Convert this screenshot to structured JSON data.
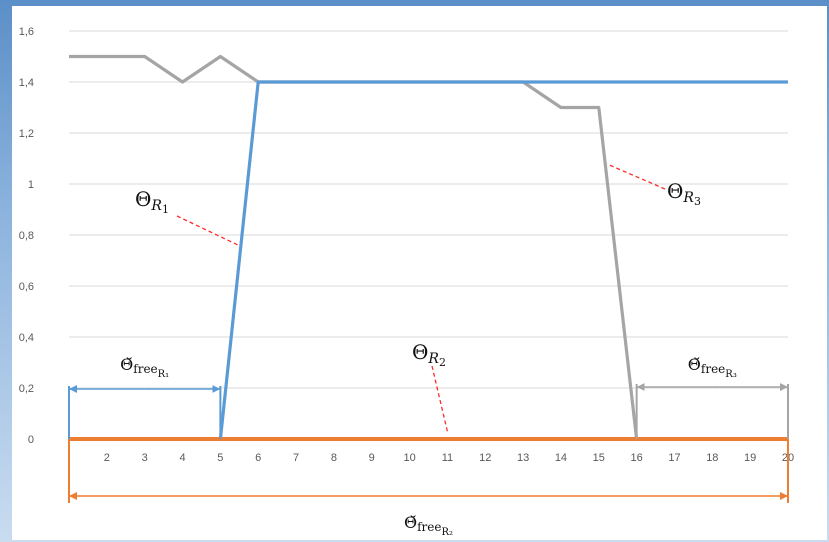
{
  "chart_data": {
    "type": "line",
    "x": [
      1,
      2,
      3,
      4,
      5,
      6,
      7,
      8,
      9,
      10,
      11,
      12,
      13,
      14,
      15,
      16,
      17,
      18,
      19,
      20
    ],
    "x_tick_labels": [
      "2",
      "3",
      "4",
      "5",
      "6",
      "7",
      "8",
      "9",
      "10",
      "11",
      "12",
      "13",
      "14",
      "15",
      "16",
      "17",
      "18",
      "19",
      "20"
    ],
    "y_tick_labels": [
      "0",
      "0,2",
      "0,4",
      "0,6",
      "0,8",
      "1",
      "1,2",
      "1,4",
      "1,6"
    ],
    "ylim": [
      0,
      1.6
    ],
    "xlim": [
      1,
      20
    ],
    "grid": "horizontal",
    "series": [
      {
        "color": "#5b9bd5",
        "points": [
          [
            1,
            0
          ],
          [
            5,
            0
          ],
          [
            6,
            1.4
          ],
          [
            20,
            1.4
          ]
        ]
      },
      {
        "color": "#ed7d31",
        "points": [
          [
            1,
            0
          ],
          [
            20,
            0
          ]
        ]
      },
      {
        "color": "#a5a5a5",
        "points": [
          [
            1,
            1.5
          ],
          [
            3,
            1.5
          ],
          [
            4,
            1.4
          ],
          [
            5,
            1.5
          ],
          [
            6,
            1.4
          ],
          [
            13,
            1.4
          ],
          [
            14,
            1.3
          ],
          [
            15,
            1.3
          ],
          [
            16,
            0
          ],
          [
            20,
            0
          ]
        ]
      }
    ],
    "annotations": [
      {
        "label": "Θ",
        "sub": "R",
        "subsub": "1",
        "color": "#111111",
        "at": [
          4.7,
          0.85
        ]
      },
      {
        "label": "Θ",
        "sub": "R",
        "subsub": "2",
        "color": "#111111",
        "at": [
          11,
          0.05
        ]
      },
      {
        "label": "Θ",
        "sub": "R",
        "subsub": "3",
        "color": "#111111",
        "at": [
          15.2,
          1.05
        ]
      }
    ],
    "range_markers": [
      {
        "label": "Θ̆",
        "sub": "free",
        "subsub": "R₁",
        "from": 1,
        "to": 5,
        "color": "#5b9bd5"
      },
      {
        "label": "Θ̆",
        "sub": "free",
        "subsub": "R₂",
        "from": 1,
        "to": 20,
        "color": "#ed7d31"
      },
      {
        "label": "Θ̆",
        "sub": "free",
        "subsub": "R₃",
        "from": 16,
        "to": 20,
        "color": "#a5a5a5"
      }
    ]
  }
}
